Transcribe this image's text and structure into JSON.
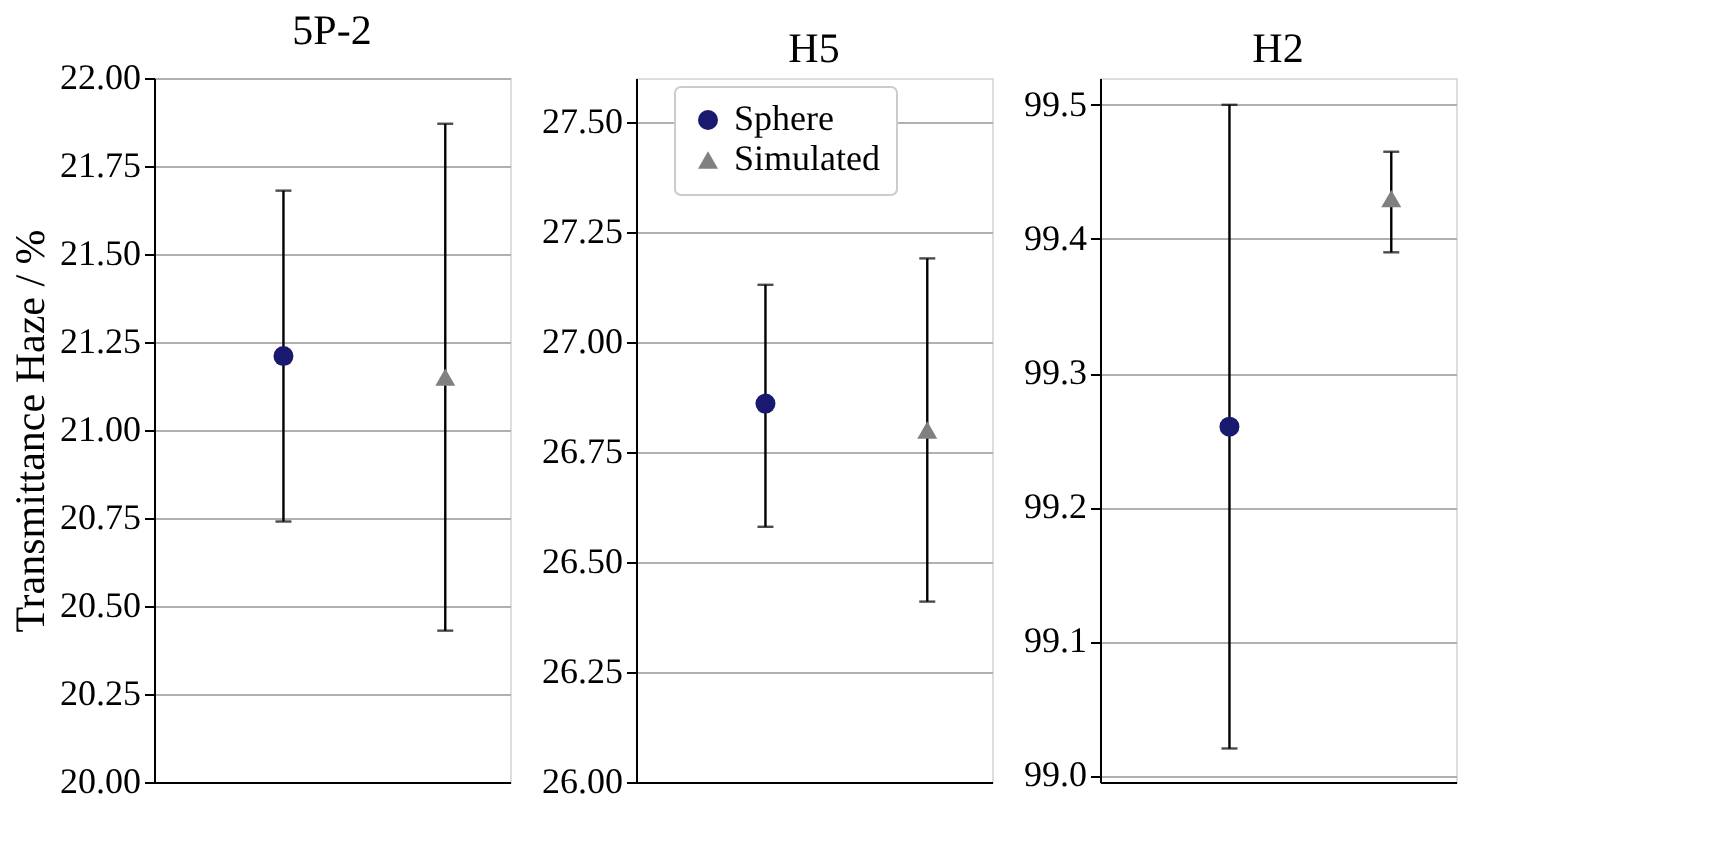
{
  "chart_data": [
    {
      "type": "scatter",
      "title": "5P-2",
      "ylabel": "Transmittance Haze / %",
      "categories": [
        null,
        null
      ],
      "ylim": [
        20,
        22
      ],
      "yticks": [
        {
          "value": 20,
          "label": "20.00"
        },
        {
          "value": 20.25,
          "label": "20.25"
        },
        {
          "value": 20.5,
          "label": "20.50"
        },
        {
          "value": 20.75,
          "label": "20.75"
        },
        {
          "value": 21,
          "label": "21.00"
        },
        {
          "value": 21.25,
          "label": "21.25"
        },
        {
          "value": 21.5,
          "label": "21.50"
        },
        {
          "value": 21.75,
          "label": "21.75"
        },
        {
          "value": 22,
          "label": "22.00"
        }
      ],
      "grid": "y",
      "legend": false,
      "tick_labels": "y",
      "series": [
        {
          "color": "#191970",
          "marker": "circle",
          "values": [
            21.21,
            null
          ],
          "errors": [
            [
              20.74,
              21.68
            ],
            null
          ]
        },
        {
          "color": "#808080",
          "marker": "triangle",
          "values": [
            null,
            21.15
          ],
          "errors": [
            null,
            [
              20.43,
              21.87
            ]
          ]
        }
      ]
    },
    {
      "type": "scatter",
      "title": "H5",
      "categories": [
        null,
        null
      ],
      "ylim": [
        26,
        27.6
      ],
      "yticks": [
        {
          "value": 26,
          "label": "26.00"
        },
        {
          "value": 26.25,
          "label": "26.25"
        },
        {
          "value": 26.5,
          "label": "26.50"
        },
        {
          "value": 26.75,
          "label": "26.75"
        },
        {
          "value": 27,
          "label": "27.00"
        },
        {
          "value": 27.25,
          "label": "27.25"
        },
        {
          "value": 27.5,
          "label": "27.50"
        }
      ],
      "grid": "y",
      "legend": "top",
      "tick_labels": "y",
      "series": [
        {
          "name": "Sphere",
          "color": "#191970",
          "marker": "circle",
          "values": [
            26.86,
            null
          ],
          "errors": [
            [
              26.58,
              27.13
            ],
            null
          ]
        },
        {
          "name": "Simulated",
          "color": "#808080",
          "marker": "triangle",
          "values": [
            null,
            26.8
          ],
          "errors": [
            null,
            [
              26.41,
              27.19
            ]
          ]
        }
      ]
    },
    {
      "type": "scatter",
      "title": "H2",
      "categories": [
        null,
        null
      ],
      "ylim": [
        98.995,
        99.52
      ],
      "yticks": [
        {
          "value": 99.0,
          "label": "99.0"
        },
        {
          "value": 99.1,
          "label": "99.1"
        },
        {
          "value": 99.2,
          "label": "99.2"
        },
        {
          "value": 99.3,
          "label": "99.3"
        },
        {
          "value": 99.4,
          "label": "99.4"
        },
        {
          "value": 99.5,
          "label": "99.5"
        }
      ],
      "grid": "y",
      "legend": false,
      "tick_labels": "y",
      "series": [
        {
          "color": "#191970",
          "marker": "circle",
          "values": [
            99.26,
            null
          ],
          "errors": [
            [
              99.02,
              99.5
            ],
            null
          ]
        },
        {
          "color": "#808080",
          "marker": "triangle",
          "values": [
            null,
            99.43
          ],
          "errors": [
            null,
            [
              99.39,
              99.465
            ]
          ]
        }
      ]
    }
  ]
}
